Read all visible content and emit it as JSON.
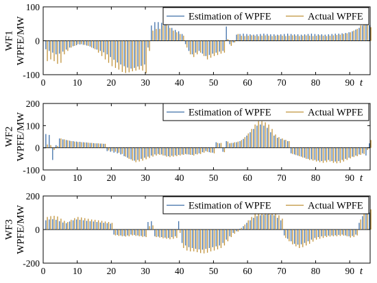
{
  "chart_data": [
    {
      "type": "bar",
      "ylabel_lines": [
        "WF1",
        "WPFE/MW"
      ],
      "xvar": "t",
      "xlim": [
        0,
        96
      ],
      "ylim": [
        -100,
        100
      ],
      "xticks": [
        0,
        10,
        20,
        30,
        40,
        50,
        60,
        70,
        80,
        90
      ],
      "yticks": [
        -100,
        0,
        100
      ],
      "legend": {
        "placement": "top-right",
        "entries": [
          "Estimation of WPFE",
          "Actual WPFE"
        ]
      },
      "x": [
        1,
        2,
        3,
        4,
        5,
        6,
        7,
        8,
        9,
        10,
        11,
        12,
        13,
        14,
        15,
        16,
        17,
        18,
        19,
        20,
        21,
        22,
        23,
        24,
        25,
        26,
        27,
        28,
        29,
        30,
        31,
        32,
        33,
        34,
        35,
        36,
        37,
        38,
        39,
        40,
        41,
        42,
        43,
        44,
        45,
        46,
        47,
        48,
        49,
        50,
        51,
        52,
        53,
        54,
        55,
        56,
        57,
        58,
        59,
        60,
        61,
        62,
        63,
        64,
        65,
        66,
        67,
        68,
        69,
        70,
        71,
        72,
        73,
        74,
        75,
        76,
        77,
        78,
        79,
        80,
        81,
        82,
        83,
        84,
        85,
        86,
        87,
        88,
        89,
        90,
        91,
        92,
        93,
        94,
        95,
        96
      ],
      "series": [
        {
          "name": "Estimation of WPFE",
          "values": [
            -25,
            -30,
            -35,
            -40,
            -38,
            -32,
            -26,
            -20,
            -16,
            -13,
            -11,
            -12,
            -14,
            -17,
            -22,
            -26,
            -30,
            -34,
            -40,
            -48,
            -56,
            -64,
            -70,
            -75,
            -79,
            -82,
            -80,
            -76,
            -74,
            -70,
            -20,
            45,
            55,
            55,
            53,
            50,
            45,
            38,
            32,
            28,
            20,
            -10,
            -30,
            -40,
            -35,
            -30,
            -38,
            -45,
            -42,
            -38,
            -35,
            -32,
            -30,
            42,
            -10,
            -5,
            18,
            20,
            21,
            20,
            19,
            18,
            19,
            20,
            21,
            20,
            19,
            19,
            18,
            19,
            20,
            21,
            20,
            19,
            19,
            18,
            19,
            20,
            21,
            20,
            19,
            19,
            18,
            19,
            20,
            21,
            21,
            22,
            23,
            25,
            28,
            33,
            38,
            45,
            48,
            46
          ]
        },
        {
          "name": "Actual WPFE",
          "values": [
            -60,
            -55,
            -60,
            -68,
            -65,
            -40,
            -30,
            -20,
            -15,
            -10,
            -10,
            -12,
            -15,
            -20,
            -25,
            -35,
            -45,
            -55,
            -65,
            -75,
            -80,
            -85,
            -92,
            -95,
            -93,
            -90,
            -88,
            -85,
            -88,
            -95,
            -30,
            30,
            35,
            35,
            45,
            50,
            38,
            30,
            25,
            20,
            15,
            -20,
            -40,
            -48,
            -40,
            -35,
            -45,
            -55,
            -50,
            -45,
            -42,
            -38,
            -35,
            5,
            -15,
            -5,
            20,
            15,
            14,
            15,
            16,
            15,
            14,
            15,
            16,
            15,
            14,
            15,
            16,
            15,
            14,
            15,
            16,
            15,
            14,
            15,
            16,
            15,
            14,
            15,
            16,
            15,
            14,
            15,
            16,
            17,
            18,
            20,
            22,
            25,
            30,
            35,
            45,
            50,
            48,
            40
          ]
        }
      ]
    },
    {
      "type": "bar",
      "ylabel_lines": [
        "WF2",
        "WPFE/MW"
      ],
      "xvar": "t",
      "xlim": [
        0,
        96
      ],
      "ylim": [
        -100,
        200
      ],
      "xticks": [
        0,
        10,
        20,
        30,
        40,
        50,
        60,
        70,
        80,
        90
      ],
      "yticks": [
        -100,
        0,
        100,
        200
      ],
      "legend": {
        "placement": "top-right",
        "entries": [
          "Estimation of WPFE",
          "Actual WPFE"
        ]
      },
      "x": [
        1,
        2,
        3,
        4,
        5,
        6,
        7,
        8,
        9,
        10,
        11,
        12,
        13,
        14,
        15,
        16,
        17,
        18,
        19,
        20,
        21,
        22,
        23,
        24,
        25,
        26,
        27,
        28,
        29,
        30,
        31,
        32,
        33,
        34,
        35,
        36,
        37,
        38,
        39,
        40,
        41,
        42,
        43,
        44,
        45,
        46,
        47,
        48,
        49,
        50,
        51,
        52,
        53,
        54,
        55,
        56,
        57,
        58,
        59,
        60,
        61,
        62,
        63,
        64,
        65,
        66,
        67,
        68,
        69,
        70,
        71,
        72,
        73,
        74,
        75,
        76,
        77,
        78,
        79,
        80,
        81,
        82,
        83,
        84,
        85,
        86,
        87,
        88,
        89,
        90,
        91,
        92,
        93,
        94,
        95,
        96
      ],
      "series": [
        {
          "name": "Estimation of WPFE",
          "values": [
            62,
            58,
            -55,
            12,
            42,
            38,
            35,
            32,
            30,
            28,
            27,
            25,
            24,
            22,
            21,
            20,
            19,
            18,
            -15,
            -18,
            -22,
            -25,
            -30,
            -38,
            -45,
            -52,
            -58,
            -55,
            -50,
            -45,
            -40,
            -35,
            -30,
            -28,
            -30,
            -35,
            -38,
            -36,
            -34,
            -32,
            -30,
            -28,
            -30,
            -32,
            -28,
            -25,
            -20,
            -15,
            -20,
            -22,
            25,
            20,
            -18,
            30,
            20,
            22,
            25,
            30,
            40,
            55,
            70,
            85,
            100,
            105,
            100,
            90,
            70,
            55,
            45,
            40,
            35,
            30,
            -25,
            -30,
            -35,
            -40,
            -45,
            -50,
            -52,
            -55,
            -58,
            -60,
            -58,
            -55,
            -60,
            -62,
            -60,
            -55,
            -50,
            -45,
            -40,
            -35,
            -30,
            -25,
            -35,
            20
          ]
        },
        {
          "name": "Actual WPFE",
          "values": [
            15,
            12,
            -10,
            8,
            42,
            38,
            34,
            30,
            28,
            26,
            25,
            24,
            23,
            22,
            20,
            20,
            19,
            18,
            -12,
            -15,
            -18,
            -22,
            -28,
            -40,
            -50,
            -58,
            -65,
            -62,
            -58,
            -52,
            -46,
            -40,
            -35,
            -32,
            -35,
            -40,
            -42,
            -40,
            -38,
            -35,
            -32,
            -30,
            -32,
            -35,
            -30,
            -28,
            -22,
            -18,
            -22,
            -25,
            22,
            22,
            -20,
            28,
            22,
            25,
            28,
            35,
            48,
            65,
            85,
            105,
            120,
            120,
            115,
            105,
            85,
            60,
            48,
            42,
            36,
            30,
            -28,
            -33,
            -38,
            -44,
            -50,
            -55,
            -58,
            -62,
            -65,
            -68,
            -65,
            -62,
            -68,
            -70,
            -68,
            -62,
            -55,
            -48,
            -42,
            -38,
            -32,
            -28,
            -10,
            35
          ]
        }
      ]
    },
    {
      "type": "bar",
      "ylabel_lines": [
        "WF3",
        "WPFE/MW"
      ],
      "xvar": "t",
      "xlim": [
        0,
        96
      ],
      "ylim": [
        -200,
        200
      ],
      "xticks": [
        0,
        10,
        20,
        30,
        40,
        50,
        60,
        70,
        80,
        90
      ],
      "yticks": [
        -200,
        0,
        200
      ],
      "legend": {
        "placement": "top-right",
        "entries": [
          "Estimation of WPFE",
          "Actual WPFE"
        ]
      },
      "x": [
        1,
        2,
        3,
        4,
        5,
        6,
        7,
        8,
        9,
        10,
        11,
        12,
        13,
        14,
        15,
        16,
        17,
        18,
        19,
        20,
        21,
        22,
        23,
        24,
        25,
        26,
        27,
        28,
        29,
        30,
        31,
        32,
        33,
        34,
        35,
        36,
        37,
        38,
        39,
        40,
        41,
        42,
        43,
        44,
        45,
        46,
        47,
        48,
        49,
        50,
        51,
        52,
        53,
        54,
        55,
        56,
        57,
        58,
        59,
        60,
        61,
        62,
        63,
        64,
        65,
        66,
        67,
        68,
        69,
        70,
        71,
        72,
        73,
        74,
        75,
        76,
        77,
        78,
        79,
        80,
        81,
        82,
        83,
        84,
        85,
        86,
        87,
        88,
        89,
        90,
        91,
        92,
        93,
        94,
        95,
        96
      ],
      "series": [
        {
          "name": "Estimation of WPFE",
          "values": [
            55,
            60,
            62,
            58,
            50,
            42,
            38,
            48,
            55,
            60,
            58,
            55,
            52,
            50,
            48,
            45,
            42,
            40,
            38,
            35,
            -30,
            -32,
            -35,
            -38,
            -35,
            -30,
            -32,
            -35,
            -38,
            -40,
            45,
            50,
            -40,
            -42,
            -45,
            -48,
            -50,
            -45,
            -40,
            50,
            -80,
            -95,
            -105,
            -110,
            -115,
            -118,
            -120,
            -115,
            -110,
            -105,
            -100,
            -95,
            -80,
            -60,
            -40,
            -20,
            -10,
            5,
            20,
            40,
            55,
            70,
            80,
            85,
            88,
            90,
            88,
            85,
            70,
            55,
            -35,
            -55,
            -70,
            -85,
            -90,
            -88,
            -80,
            -70,
            -60,
            -50,
            -45,
            -40,
            -38,
            -36,
            -35,
            -34,
            -32,
            -30,
            -35,
            -40,
            -38,
            -30,
            40,
            80,
            95,
            100
          ]
        },
        {
          "name": "Actual WPFE",
          "values": [
            75,
            80,
            82,
            78,
            65,
            52,
            45,
            58,
            68,
            75,
            72,
            68,
            64,
            60,
            58,
            55,
            52,
            48,
            45,
            40,
            -35,
            -38,
            -40,
            -42,
            -40,
            -35,
            -38,
            -40,
            -44,
            -45,
            20,
            25,
            -45,
            -48,
            -52,
            -55,
            -58,
            -55,
            -50,
            -20,
            -110,
            -125,
            -130,
            -130,
            -135,
            -140,
            -142,
            -138,
            -130,
            -125,
            -118,
            -110,
            -95,
            -70,
            -45,
            -25,
            -12,
            10,
            30,
            55,
            75,
            95,
            110,
            110,
            105,
            110,
            108,
            100,
            85,
            65,
            -50,
            -70,
            -88,
            -100,
            -110,
            -105,
            -95,
            -85,
            -72,
            -60,
            -55,
            -50,
            -45,
            -42,
            -40,
            -40,
            -38,
            -36,
            -40,
            -48,
            -45,
            -35,
            60,
            100,
            115,
            120
          ]
        }
      ]
    }
  ],
  "colors": {
    "estimation": "#3f6fa8",
    "actual": "#c0923a",
    "axis": "#000000"
  }
}
